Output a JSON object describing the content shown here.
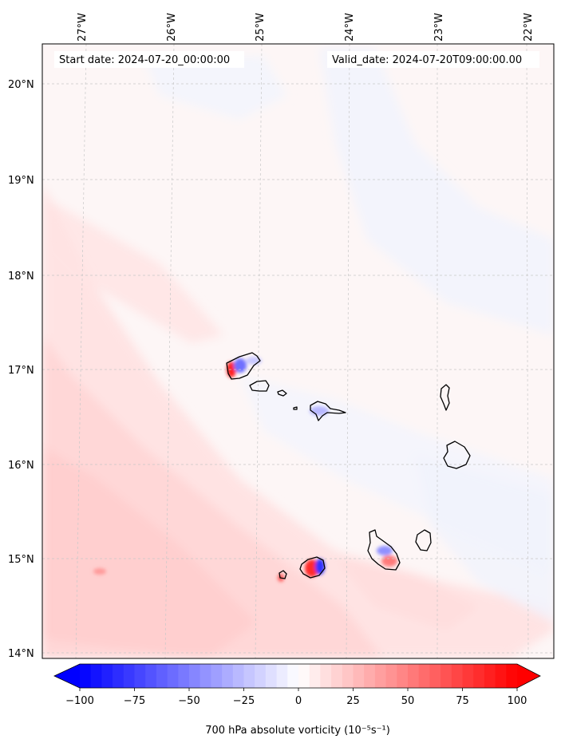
{
  "header": {
    "start_date": "Start date: 2024-07-20_00:00:00",
    "valid_date": "Valid_date: 2024-07-20T09:00:00.00"
  },
  "axes": {
    "lon_labels": [
      "27°W",
      "26°W",
      "25°W",
      "24°W",
      "23°W",
      "22°W"
    ],
    "lat_labels": [
      "20°N",
      "19°N",
      "18°N",
      "17°N",
      "16°N",
      "15°N",
      "14°N"
    ]
  },
  "colorbar": {
    "label": "700 hPa absolute vorticity (10⁻⁵s⁻¹)",
    "ticks": [
      "−100",
      "−75",
      "−50",
      "−25",
      "0",
      "25",
      "50",
      "75",
      "100"
    ],
    "vmin": -100,
    "vmax": 100,
    "color_neg": "#0000ff",
    "color_zero": "#ffffff",
    "color_pos": "#ff0000",
    "extend": "both"
  },
  "colors": {
    "background_field": "#fdf6f6",
    "grid": "#c8c8c8",
    "coast": "#000000"
  }
}
